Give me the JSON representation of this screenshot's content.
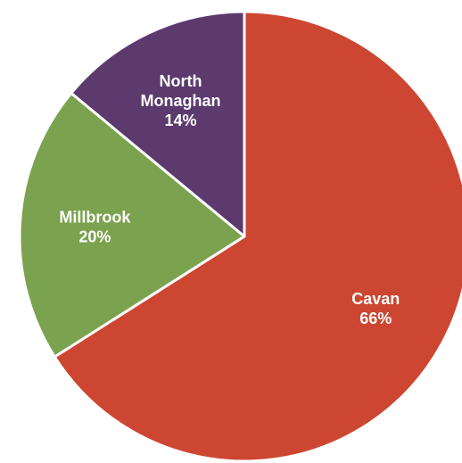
{
  "chart_data": {
    "type": "pie",
    "start_angle_deg": 0,
    "direction": "clockwise",
    "slices": [
      {
        "label_lines": [
          "Cavan"
        ],
        "value": 66,
        "value_label": "66%",
        "color": "#cc4631"
      },
      {
        "label_lines": [
          "Millbrook"
        ],
        "value": 20,
        "value_label": "20%",
        "color": "#7ba24e"
      },
      {
        "label_lines": [
          "North",
          "Monaghan"
        ],
        "value": 14,
        "value_label": "14%",
        "color": "#5c3a6e"
      }
    ],
    "title": "",
    "legend": "none"
  }
}
